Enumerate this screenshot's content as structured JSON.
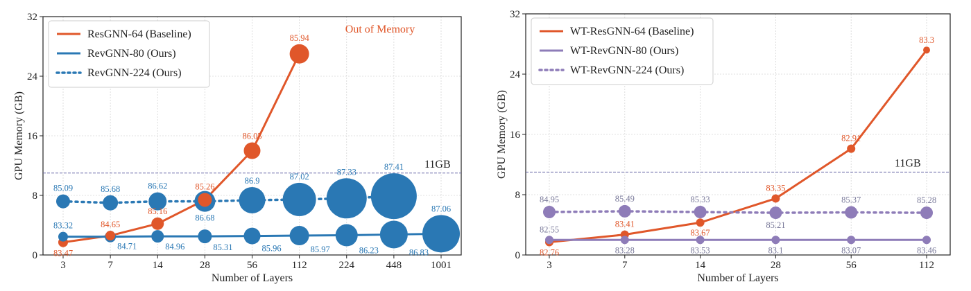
{
  "chart_data": [
    {
      "type": "line",
      "xlabel": "Number of Layers",
      "ylabel": "GPU Memory (GB)",
      "x_categories": [
        "3",
        "7",
        "14",
        "28",
        "56",
        "112",
        "224",
        "448",
        "1001"
      ],
      "ylim": [
        0,
        32
      ],
      "yticks": [
        "0",
        "8",
        "16",
        "24",
        "32"
      ],
      "grid": true,
      "legend_position": "top-left",
      "threshold": {
        "value": 11,
        "label": "11GB"
      },
      "annotation": "Out of Memory",
      "colors": {
        "baseline": "#e0572a",
        "ours": "#2a78b4"
      },
      "series": [
        {
          "name": "ResGNN-64 (Baseline)",
          "style": "solid",
          "color": "#e0572a",
          "points": [
            {
              "x": "3",
              "y": 1.7,
              "label": "83.47",
              "label_pos": "below",
              "size": 7
            },
            {
              "x": "7",
              "y": 2.6,
              "label": "84.65",
              "label_pos": "above",
              "size": 7
            },
            {
              "x": "14",
              "y": 4.2,
              "label": "85.16",
              "label_pos": "above",
              "size": 9
            },
            {
              "x": "28",
              "y": 7.4,
              "label": "85.26",
              "label_pos": "above",
              "size": 10
            },
            {
              "x": "56",
              "y": 14.0,
              "label": "86.05",
              "label_pos": "above",
              "size": 12
            },
            {
              "x": "112",
              "y": 27.0,
              "label": "85.94",
              "label_pos": "above",
              "size": 14
            }
          ]
        },
        {
          "name": "RevGNN-80 (Ours)",
          "style": "solid",
          "color": "#2a78b4",
          "points": [
            {
              "x": "3",
              "y": 2.45,
              "label": "83.32",
              "label_pos": "above",
              "size": 7
            },
            {
              "x": "7",
              "y": 2.45,
              "label": "84.71",
              "label_pos": "below-right",
              "size": 8
            },
            {
              "x": "14",
              "y": 2.5,
              "label": "84.96",
              "label_pos": "below-right",
              "size": 9
            },
            {
              "x": "28",
              "y": 2.5,
              "label": "85.31",
              "label_pos": "below-right",
              "size": 10
            },
            {
              "x": "56",
              "y": 2.55,
              "label": "85.96",
              "label_pos": "below-right",
              "size": 12
            },
            {
              "x": "112",
              "y": 2.6,
              "label": "85.97",
              "label_pos": "below-right",
              "size": 14
            },
            {
              "x": "224",
              "y": 2.65,
              "label": "86.23",
              "label_pos": "below-right",
              "size": 16
            },
            {
              "x": "448",
              "y": 2.75,
              "label": "86.83",
              "label_pos": "below-right",
              "size": 20
            },
            {
              "x": "1001",
              "y": 2.85,
              "label": "87.06",
              "label_pos": "above",
              "size": 27
            }
          ]
        },
        {
          "name": "RevGNN-224 (Ours)",
          "style": "dotted",
          "color": "#2a78b4",
          "points": [
            {
              "x": "3",
              "y": 7.2,
              "label": "85.09",
              "label_pos": "above",
              "size": 10
            },
            {
              "x": "7",
              "y": 7.0,
              "label": "85.68",
              "label_pos": "above",
              "size": 11
            },
            {
              "x": "14",
              "y": 7.2,
              "label": "86.62",
              "label_pos": "above",
              "size": 13
            },
            {
              "x": "28",
              "y": 7.2,
              "label": "86.68",
              "label_pos": "below",
              "size": 15
            },
            {
              "x": "56",
              "y": 7.35,
              "label": "86.9",
              "label_pos": "above",
              "size": 19
            },
            {
              "x": "112",
              "y": 7.45,
              "label": "87.02",
              "label_pos": "above",
              "size": 24
            },
            {
              "x": "224",
              "y": 7.6,
              "label": "87.33",
              "label_pos": "above",
              "size": 29
            },
            {
              "x": "448",
              "y": 7.9,
              "label": "87.41",
              "label_pos": "above",
              "size": 33
            }
          ]
        }
      ]
    },
    {
      "type": "line",
      "xlabel": "Number of Layers",
      "ylabel": "GPU Memory (GB)",
      "x_categories": [
        "3",
        "7",
        "14",
        "28",
        "56",
        "112"
      ],
      "ylim": [
        0,
        32
      ],
      "yticks": [
        "0",
        "8",
        "16",
        "24",
        "32"
      ],
      "grid": true,
      "legend_position": "top-left",
      "threshold": {
        "value": 11,
        "label": "11GB"
      },
      "colors": {
        "baseline": "#e0572a",
        "ours": "#8e7cb8"
      },
      "series": [
        {
          "name": "WT-ResGNN-64 (Baseline)",
          "style": "solid",
          "color": "#e0572a",
          "points": [
            {
              "x": "3",
              "y": 1.7,
              "label": "82.76",
              "label_pos": "below",
              "size": 6
            },
            {
              "x": "7",
              "y": 2.7,
              "label": "83.41",
              "label_pos": "above",
              "size": 6
            },
            {
              "x": "14",
              "y": 4.3,
              "label": "83.67",
              "label_pos": "below",
              "size": 6
            },
            {
              "x": "28",
              "y": 7.5,
              "label": "83.35",
              "label_pos": "above",
              "size": 6
            },
            {
              "x": "56",
              "y": 14.1,
              "label": "82.91",
              "label_pos": "above",
              "size": 6
            },
            {
              "x": "112",
              "y": 27.2,
              "label": "83.3",
              "label_pos": "above",
              "size": 5
            }
          ]
        },
        {
          "name": "WT-RevGNN-80 (Ours)",
          "style": "solid",
          "color": "#8e7cb8",
          "points": [
            {
              "x": "3",
              "y": 2.0,
              "label": "82.55",
              "label_pos": "above",
              "size": 6
            },
            {
              "x": "7",
              "y": 2.0,
              "label": "83.28",
              "label_pos": "below",
              "size": 6
            },
            {
              "x": "14",
              "y": 2.0,
              "label": "83.53",
              "label_pos": "below",
              "size": 6
            },
            {
              "x": "28",
              "y": 2.0,
              "label": "83.1",
              "label_pos": "below",
              "size": 6
            },
            {
              "x": "56",
              "y": 2.0,
              "label": "83.07",
              "label_pos": "below",
              "size": 6
            },
            {
              "x": "112",
              "y": 2.0,
              "label": "83.46",
              "label_pos": "below",
              "size": 6
            }
          ]
        },
        {
          "name": "WT-RevGNN-224 (Ours)",
          "style": "dotted",
          "color": "#8e7cb8",
          "points": [
            {
              "x": "3",
              "y": 5.7,
              "label": "84.95",
              "label_pos": "above",
              "size": 9
            },
            {
              "x": "7",
              "y": 5.8,
              "label": "85.49",
              "label_pos": "above",
              "size": 9
            },
            {
              "x": "14",
              "y": 5.7,
              "label": "85.33",
              "label_pos": "above",
              "size": 9
            },
            {
              "x": "28",
              "y": 5.6,
              "label": "85.21",
              "label_pos": "below",
              "size": 9
            },
            {
              "x": "56",
              "y": 5.65,
              "label": "85.37",
              "label_pos": "above",
              "size": 9
            },
            {
              "x": "112",
              "y": 5.6,
              "label": "85.28",
              "label_pos": "above",
              "size": 9
            }
          ]
        }
      ]
    }
  ]
}
